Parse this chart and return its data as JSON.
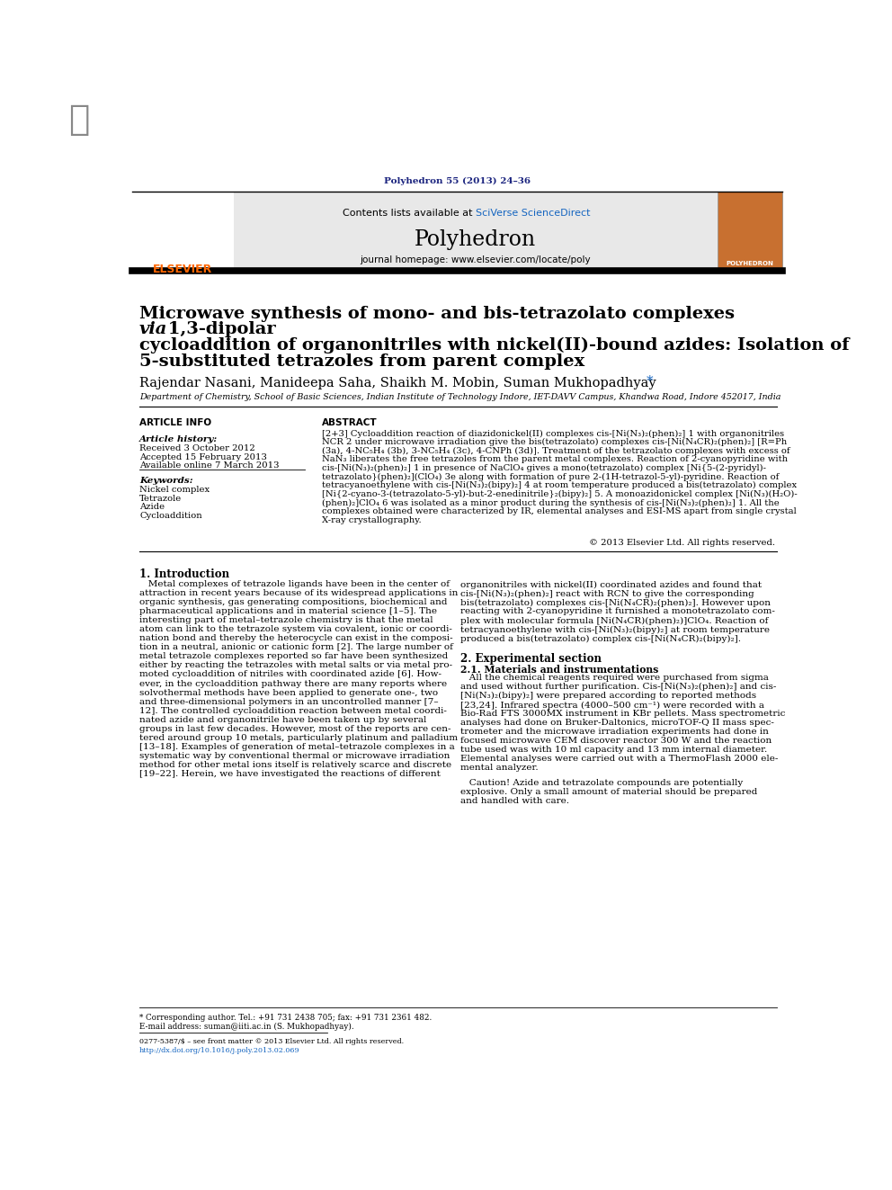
{
  "page_width": 9.92,
  "page_height": 13.23,
  "bg_color": "#ffffff",
  "journal_ref": "Polyhedron 55 (2013) 24–36",
  "journal_ref_color": "#1a237e",
  "header_bg": "#e8e8e8",
  "header_journal_name": "Polyhedron",
  "header_contents_text": "Contents lists available at ",
  "header_sciverse": "SciVerse ScienceDirect",
  "header_homepage": "journal homepage: www.elsevier.com/locate/poly",
  "elsevier_color": "#ff6600",
  "sciverse_color": "#1565c0",
  "article_info_header": "ARTICLE INFO",
  "abstract_header": "ABSTRACT",
  "article_history_label": "Article history:",
  "received": "Received 3 October 2012",
  "accepted": "Accepted 15 February 2013",
  "available": "Available online 7 March 2013",
  "keywords_label": "Keywords:",
  "keywords": [
    "Nickel complex",
    "Tetrazole",
    "Azide",
    "Cycloaddition"
  ],
  "copyright": "© 2013 Elsevier Ltd. All rights reserved.",
  "intro_header": "1. Introduction",
  "exp_header": "2. Experimental section",
  "exp_sub": "2.1. Materials and instrumentations",
  "footnote1": "* Corresponding author. Tel.: +91 731 2438 705; fax: +91 731 2361 482.",
  "footnote2": "E-mail address: suman@iiti.ac.in (S. Mukhopadhyay).",
  "footnote3": "0277-5387/$ – see front matter © 2013 Elsevier Ltd. All rights reserved.",
  "footnote4": "http://dx.doi.org/10.1016/j.poly.2013.02.069",
  "affiliation": "Department of Chemistry, School of Basic Sciences, Indian Institute of Technology Indore, IET-DAVV Campus, Khandwa Road, Indore 452017, India",
  "abstract_lines": [
    "[2+3] Cycloaddition reaction of diazidonickel(II) complexes cis-[Ni(N₃)₂(phen)₂] 1 with organonitriles",
    "NCR 2 under microwave irradiation give the bis(tetrazolato) complexes cis-[Ni(N₄CR)₂(phen)₂] [R=Ph",
    "(3a), 4-NC₅H₄ (3b), 3-NC₅H₄ (3c), 4-CNPh (3d)]. Treatment of the tetrazolato complexes with excess of",
    "NaN₃ liberates the free tetrazoles from the parent metal complexes. Reaction of 2-cyanopyridine with",
    "cis-[Ni(N₃)₂(phen)₂] 1 in presence of NaClO₄ gives a mono(tetrazolato) complex [Ni{5-(2-pyridyl)-",
    "tetrazolato}(phen)₂](ClO₄) 3e along with formation of pure 2-(1H-tetrazol-5-yl)-pyridine. Reaction of",
    "tetracyanoethylene with cis-[Ni(N₃)₂(bipy)₂] 4 at room temperature produced a bis(tetrazolato) complex",
    "[Ni{2-cyano-3-(tetrazolato-5-yl)-but-2-enedinitrile}₂(bipy)₂] 5. A monoazidonickel complex [Ni(N₃)(H₂O)-",
    "(phen)₂]ClO₄ 6 was isolated as a minor product during the synthesis of cis-[Ni(N₃)₂(phen)₂] 1. All the",
    "complexes obtained were characterized by IR, elemental analyses and ESI-MS apart from single crystal",
    "X-ray crystallography."
  ],
  "intro_col1_lines": [
    "   Metal complexes of tetrazole ligands have been in the center of",
    "attraction in recent years because of its widespread applications in",
    "organic synthesis, gas generating compositions, biochemical and",
    "pharmaceutical applications and in material science [1–5]. The",
    "interesting part of metal–tetrazole chemistry is that the metal",
    "atom can link to the tetrazole system via covalent, ionic or coordi-",
    "nation bond and thereby the heterocycle can exist in the composi-",
    "tion in a neutral, anionic or cationic form [2]. The large number of",
    "metal tetrazole complexes reported so far have been synthesized",
    "either by reacting the tetrazoles with metal salts or via metal pro-",
    "moted cycloaddition of nitriles with coordinated azide [6]. How-",
    "ever, in the cycloaddition pathway there are many reports where",
    "solvothermal methods have been applied to generate one-, two",
    "and three-dimensional polymers in an uncontrolled manner [7–",
    "12]. The controlled cycloaddition reaction between metal coordi-",
    "nated azide and organonitrile have been taken up by several",
    "groups in last few decades. However, most of the reports are cen-",
    "tered around group 10 metals, particularly platinum and palladium",
    "[13–18]. Examples of generation of metal–tetrazole complexes in a",
    "systematic way by conventional thermal or microwave irradiation",
    "method for other metal ions itself is relatively scarce and discrete",
    "[19–22]. Herein, we have investigated the reactions of different"
  ],
  "intro_col2_lines": [
    "organonitriles with nickel(II) coordinated azides and found that",
    "cis-[Ni(N₃)₂(phen)₂] react with RCN to give the corresponding",
    "bis(tetrazolato) complexes cis-[Ni(N₄CR)₂(phen)₂]. However upon",
    "reacting with 2-cyanopyridine it furnished a monotetrazolato com-",
    "plex with molecular formula [Ni(N₄CR)(phen)₂)]ClO₄. Reaction of",
    "tetracyanoethylene with cis-[Ni(N₃)₂(bipy)₂] at room temperature",
    "produced a bis(tetrazolato) complex cis-[Ni(N₄CR)₂(bipy)₂]."
  ],
  "exp_lines": [
    "   All the chemical reagents required were purchased from sigma",
    "and used without further purification. Cis-[Ni(N₃)₂(phen)₂] and cis-",
    "[Ni(N₃)₂(bipy)₂] were prepared according to reported methods",
    "[23,24]. Infrared spectra (4000–500 cm⁻¹) were recorded with a",
    "Bio-Rad FTS 3000MX instrument in KBr pellets. Mass spectrometric",
    "analyses had done on Bruker-Daltonics, microTOF-Q II mass spec-",
    "trometer and the microwave irradiation experiments had done in",
    "focused microwave CEM discover reactor 300 W and the reaction",
    "tube used was with 10 ml capacity and 13 mm internal diameter.",
    "Elemental analyses were carried out with a ThermoFlash 2000 ele-",
    "mental analyzer."
  ],
  "caution_lines": [
    "   Caution! Azide and tetrazolate compounds are potentially",
    "explosive. Only a small amount of material should be prepared",
    "and handled with care."
  ]
}
